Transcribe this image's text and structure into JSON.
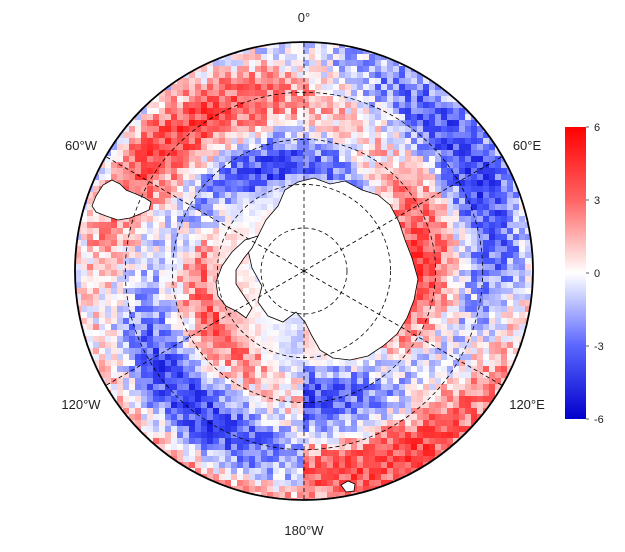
{
  "map": {
    "projection": "south-polar-stereographic",
    "graticule": {
      "meridians_deg": [
        0,
        60,
        120,
        180,
        240,
        300
      ],
      "parallels_deg_south": [
        80,
        70,
        60,
        50,
        40
      ],
      "line_style": "dashed"
    },
    "meridian_labels": {
      "top": "0°",
      "upper_right": "60°E",
      "lower_right": "120°E",
      "bottom": "180°W",
      "lower_left": "120°W",
      "upper_left": "60°W"
    },
    "field": {
      "colormap": [
        "#0000cc",
        "#4d5cff",
        "#ffffff",
        "#ff5a5a",
        "#ff0000"
      ],
      "value_range": [
        -6,
        6
      ],
      "land_mask": "white"
    }
  },
  "colorbar": {
    "min": -6,
    "max": 6,
    "tick_labels": [
      "6",
      "3",
      "0",
      "-3",
      "-6"
    ]
  }
}
